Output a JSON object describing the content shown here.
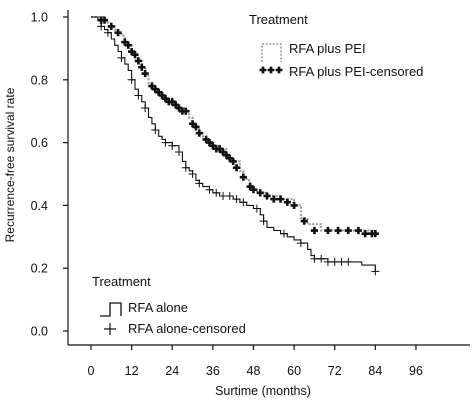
{
  "chart_data": {
    "type": "line",
    "subtype": "kaplan-meier-step",
    "xlabel": "Surtime (months)",
    "ylabel": "Recurrence-free survival rate",
    "xlim": [
      0,
      96
    ],
    "ylim": [
      0.0,
      1.0
    ],
    "x_ticks": [
      0,
      12,
      24,
      36,
      48,
      60,
      72,
      84,
      96
    ],
    "y_ticks": [
      "0.0",
      "0.2",
      "0.4",
      "0.6",
      "0.8",
      "1.0"
    ],
    "grid": false,
    "legends": [
      {
        "title": "Treatment",
        "placement": "top-right",
        "entries": [
          {
            "label": "RFA plus PEI",
            "series": "RFA plus PEI",
            "kind": "line"
          },
          {
            "label": "RFA plus PEI-censored",
            "series": "RFA plus PEI",
            "kind": "censor"
          }
        ]
      },
      {
        "title": "Treatment",
        "placement": "bottom-left",
        "entries": [
          {
            "label": "RFA alone",
            "series": "RFA alone",
            "kind": "line"
          },
          {
            "label": "RFA alone-censored",
            "series": "RFA alone",
            "kind": "censor"
          }
        ]
      }
    ],
    "series": [
      {
        "name": "RFA plus PEI",
        "style": "dotted",
        "color": "#999999",
        "censor_color": "#111111",
        "steps": [
          [
            0,
            1.0
          ],
          [
            4,
            0.99
          ],
          [
            5,
            0.98
          ],
          [
            6,
            0.97
          ],
          [
            7,
            0.96
          ],
          [
            8,
            0.95
          ],
          [
            9,
            0.94
          ],
          [
            10,
            0.92
          ],
          [
            11,
            0.91
          ],
          [
            12,
            0.89
          ],
          [
            13,
            0.87
          ],
          [
            14,
            0.86
          ],
          [
            15,
            0.84
          ],
          [
            16,
            0.82
          ],
          [
            17,
            0.79
          ],
          [
            18,
            0.78
          ],
          [
            19,
            0.77
          ],
          [
            20,
            0.76
          ],
          [
            21,
            0.75
          ],
          [
            22,
            0.74
          ],
          [
            24,
            0.73
          ],
          [
            25,
            0.72
          ],
          [
            26,
            0.71
          ],
          [
            28,
            0.7
          ],
          [
            29,
            0.68
          ],
          [
            30,
            0.66
          ],
          [
            31,
            0.65
          ],
          [
            32,
            0.63
          ],
          [
            33,
            0.62
          ],
          [
            34,
            0.61
          ],
          [
            35,
            0.6
          ],
          [
            36,
            0.59
          ],
          [
            38,
            0.58
          ],
          [
            40,
            0.56
          ],
          [
            41,
            0.55
          ],
          [
            42,
            0.54
          ],
          [
            44,
            0.51
          ],
          [
            45,
            0.49
          ],
          [
            46,
            0.48
          ],
          [
            47,
            0.46
          ],
          [
            48,
            0.45
          ],
          [
            49,
            0.44
          ],
          [
            52,
            0.43
          ],
          [
            56,
            0.42
          ],
          [
            60,
            0.4
          ],
          [
            62,
            0.36
          ],
          [
            64,
            0.34
          ],
          [
            68,
            0.32
          ],
          [
            72,
            0.32
          ],
          [
            76,
            0.32
          ],
          [
            80,
            0.32
          ],
          [
            82,
            0.31
          ],
          [
            84,
            0.31
          ]
        ],
        "censored": [
          [
            3,
            0.99
          ],
          [
            4,
            0.99
          ],
          [
            6,
            0.97
          ],
          [
            8,
            0.95
          ],
          [
            10,
            0.92
          ],
          [
            11,
            0.91
          ],
          [
            12,
            0.89
          ],
          [
            13,
            0.88
          ],
          [
            14,
            0.86
          ],
          [
            15,
            0.84
          ],
          [
            16,
            0.82
          ],
          [
            18,
            0.78
          ],
          [
            19,
            0.77
          ],
          [
            20,
            0.76
          ],
          [
            21,
            0.75
          ],
          [
            22,
            0.74
          ],
          [
            23,
            0.73
          ],
          [
            24,
            0.73
          ],
          [
            25,
            0.72
          ],
          [
            26,
            0.71
          ],
          [
            27,
            0.7
          ],
          [
            28,
            0.7
          ],
          [
            30,
            0.66
          ],
          [
            31,
            0.65
          ],
          [
            32,
            0.63
          ],
          [
            34,
            0.61
          ],
          [
            35,
            0.6
          ],
          [
            36,
            0.59
          ],
          [
            37,
            0.58
          ],
          [
            38,
            0.58
          ],
          [
            39,
            0.57
          ],
          [
            40,
            0.56
          ],
          [
            41,
            0.55
          ],
          [
            42,
            0.54
          ],
          [
            43,
            0.52
          ],
          [
            45,
            0.49
          ],
          [
            47,
            0.46
          ],
          [
            48,
            0.45
          ],
          [
            50,
            0.44
          ],
          [
            52,
            0.43
          ],
          [
            54,
            0.42
          ],
          [
            56,
            0.42
          ],
          [
            58,
            0.41
          ],
          [
            60,
            0.4
          ],
          [
            63,
            0.35
          ],
          [
            66,
            0.32
          ],
          [
            70,
            0.32
          ],
          [
            73,
            0.32
          ],
          [
            76,
            0.32
          ],
          [
            79,
            0.32
          ],
          [
            81,
            0.31
          ],
          [
            83,
            0.31
          ],
          [
            84,
            0.31
          ]
        ]
      },
      {
        "name": "RFA alone",
        "style": "solid",
        "color": "#111111",
        "censor_color": "#111111",
        "steps": [
          [
            0,
            1.0
          ],
          [
            2,
            0.99
          ],
          [
            3,
            0.97
          ],
          [
            4,
            0.96
          ],
          [
            5,
            0.95
          ],
          [
            6,
            0.93
          ],
          [
            7,
            0.91
          ],
          [
            8,
            0.89
          ],
          [
            9,
            0.87
          ],
          [
            10,
            0.85
          ],
          [
            11,
            0.83
          ],
          [
            12,
            0.8
          ],
          [
            13,
            0.77
          ],
          [
            14,
            0.75
          ],
          [
            15,
            0.73
          ],
          [
            16,
            0.71
          ],
          [
            17,
            0.68
          ],
          [
            18,
            0.66
          ],
          [
            19,
            0.64
          ],
          [
            20,
            0.62
          ],
          [
            21,
            0.61
          ],
          [
            22,
            0.6
          ],
          [
            24,
            0.59
          ],
          [
            26,
            0.57
          ],
          [
            27,
            0.54
          ],
          [
            28,
            0.52
          ],
          [
            29,
            0.51
          ],
          [
            30,
            0.5
          ],
          [
            31,
            0.48
          ],
          [
            32,
            0.47
          ],
          [
            33,
            0.46
          ],
          [
            35,
            0.45
          ],
          [
            36,
            0.44
          ],
          [
            38,
            0.43
          ],
          [
            40,
            0.43
          ],
          [
            42,
            0.42
          ],
          [
            44,
            0.41
          ],
          [
            46,
            0.4
          ],
          [
            48,
            0.39
          ],
          [
            50,
            0.37
          ],
          [
            51,
            0.35
          ],
          [
            52,
            0.33
          ],
          [
            54,
            0.32
          ],
          [
            56,
            0.31
          ],
          [
            58,
            0.3
          ],
          [
            60,
            0.29
          ],
          [
            62,
            0.28
          ],
          [
            64,
            0.26
          ],
          [
            65,
            0.24
          ],
          [
            66,
            0.23
          ],
          [
            70,
            0.22
          ],
          [
            80,
            0.21
          ],
          [
            84,
            0.19
          ]
        ],
        "censored": [
          [
            3,
            0.97
          ],
          [
            5,
            0.95
          ],
          [
            9,
            0.87
          ],
          [
            12,
            0.8
          ],
          [
            14,
            0.75
          ],
          [
            16,
            0.71
          ],
          [
            19,
            0.64
          ],
          [
            22,
            0.6
          ],
          [
            24,
            0.59
          ],
          [
            26,
            0.57
          ],
          [
            28,
            0.52
          ],
          [
            30,
            0.5
          ],
          [
            32,
            0.47
          ],
          [
            35,
            0.45
          ],
          [
            37,
            0.44
          ],
          [
            39,
            0.43
          ],
          [
            41,
            0.43
          ],
          [
            43,
            0.42
          ],
          [
            45,
            0.41
          ],
          [
            49,
            0.39
          ],
          [
            51,
            0.35
          ],
          [
            57,
            0.31
          ],
          [
            62,
            0.28
          ],
          [
            66,
            0.23
          ],
          [
            68,
            0.23
          ],
          [
            70,
            0.22
          ],
          [
            72,
            0.22
          ],
          [
            74,
            0.22
          ],
          [
            76,
            0.22
          ],
          [
            84,
            0.19
          ]
        ]
      }
    ]
  }
}
